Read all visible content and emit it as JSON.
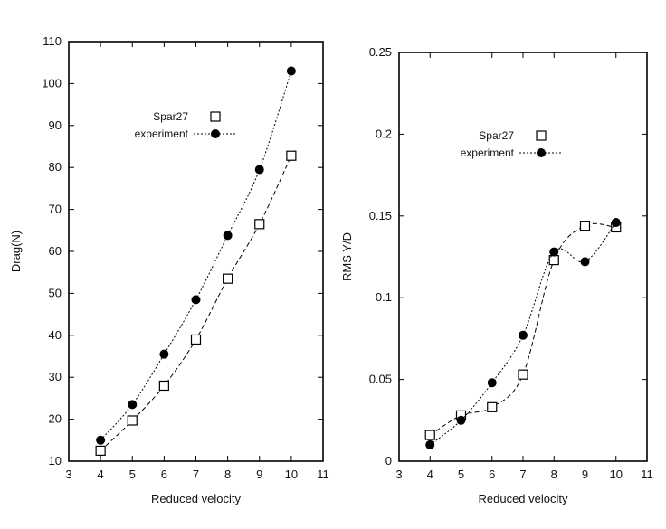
{
  "chart_data": [
    {
      "type": "line",
      "xlabel": "Reduced velocity",
      "ylabel": "Drag(N)",
      "xlim": [
        3,
        11
      ],
      "ylim": [
        10,
        110
      ],
      "x_ticks": [
        "3",
        "4",
        "5",
        "6",
        "7",
        "8",
        "9",
        "10",
        "11"
      ],
      "y_ticks": [
        "10",
        "20",
        "30",
        "40",
        "50",
        "60",
        "70",
        "80",
        "90",
        "100",
        "110"
      ],
      "grid": false,
      "legend_position": "top-center",
      "series": [
        {
          "name": "Spar27",
          "marker": "open-square",
          "line": "dashed",
          "x": [
            4,
            5,
            6,
            7,
            8,
            9,
            10
          ],
          "y": [
            12.5,
            19.7,
            28.0,
            39.0,
            53.5,
            66.5,
            82.8
          ]
        },
        {
          "name": "experiment",
          "marker": "filled-circle",
          "line": "dotted",
          "x": [
            4,
            5,
            6,
            7,
            8,
            9,
            10
          ],
          "y": [
            15.0,
            23.5,
            35.5,
            48.5,
            63.8,
            79.5,
            103.0
          ]
        }
      ]
    },
    {
      "type": "line",
      "xlabel": "Reduced velocity",
      "ylabel": "RMS Y/D",
      "xlim": [
        3,
        11
      ],
      "ylim": [
        0,
        0.25
      ],
      "x_ticks": [
        "3",
        "4",
        "5",
        "6",
        "7",
        "8",
        "9",
        "10",
        "11"
      ],
      "y_ticks": [
        "0",
        "0.05",
        "0.1",
        "0.15",
        "0.2",
        "0.25"
      ],
      "grid": false,
      "legend_position": "top-center",
      "series": [
        {
          "name": "Spar27",
          "marker": "open-square",
          "line": "dashed",
          "x": [
            4,
            5,
            6,
            7,
            8,
            9,
            10
          ],
          "y": [
            0.016,
            0.028,
            0.033,
            0.053,
            0.123,
            0.144,
            0.143
          ]
        },
        {
          "name": "experiment",
          "marker": "filled-circle",
          "line": "dotted",
          "x": [
            4,
            5,
            6,
            7,
            8,
            9,
            10
          ],
          "y": [
            0.01,
            0.025,
            0.048,
            0.077,
            0.128,
            0.122,
            0.146
          ]
        }
      ]
    }
  ]
}
